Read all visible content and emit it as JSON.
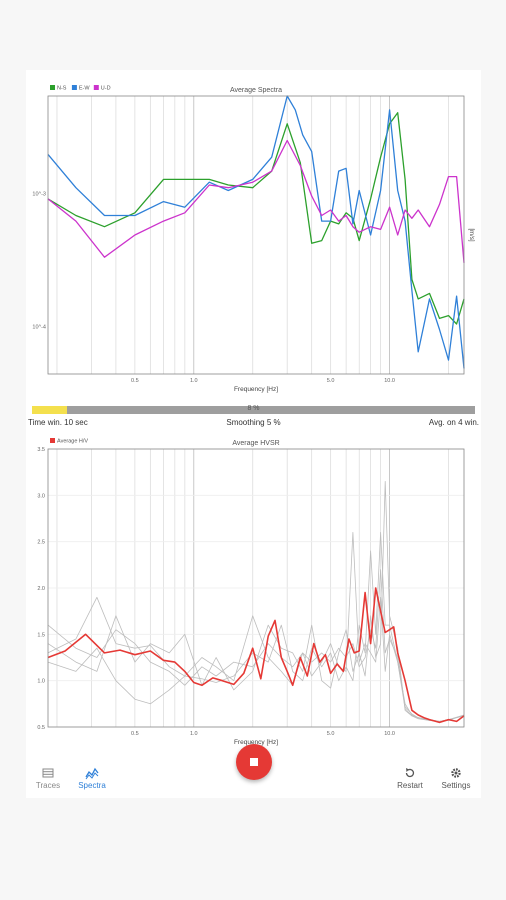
{
  "chart_data": [
    {
      "type": "line",
      "title": "Average Spectra",
      "xlabel": "Frequency [Hz]",
      "ylabel": "[m/s]",
      "xscale": "log",
      "yscale": "log",
      "xlim": [
        0.18,
        24
      ],
      "x_ticks": [
        {
          "value": 0.5,
          "label": "0.5"
        },
        {
          "value": 1,
          "label": "1.0"
        },
        {
          "value": 5,
          "label": "5.0"
        },
        {
          "value": 10,
          "label": "10.0"
        }
      ],
      "y_ticks": [
        {
          "frac": 0.35,
          "label": "10^-3"
        },
        {
          "frac": 0.83,
          "label": "10^-4"
        }
      ],
      "legend": "top-left",
      "grid": true,
      "series": [
        {
          "name": "N-S",
          "color": "#2ca02c",
          "points": [
            [
              0.18,
              0.37
            ],
            [
              0.25,
              0.43
            ],
            [
              0.35,
              0.47
            ],
            [
              0.5,
              0.42
            ],
            [
              0.7,
              0.3
            ],
            [
              0.9,
              0.3
            ],
            [
              1.2,
              0.3
            ],
            [
              1.5,
              0.32
            ],
            [
              2,
              0.33
            ],
            [
              2.5,
              0.27
            ],
            [
              3,
              0.1
            ],
            [
              3.5,
              0.24
            ],
            [
              4,
              0.53
            ],
            [
              4.5,
              0.52
            ],
            [
              5,
              0.45
            ],
            [
              5.5,
              0.46
            ],
            [
              6,
              0.42
            ],
            [
              6.5,
              0.44
            ],
            [
              7,
              0.52
            ],
            [
              8,
              0.37
            ],
            [
              9,
              0.22
            ],
            [
              10,
              0.1
            ],
            [
              11,
              0.06
            ],
            [
              12,
              0.3
            ],
            [
              13,
              0.66
            ],
            [
              14,
              0.73
            ],
            [
              16,
              0.71
            ],
            [
              18,
              0.8
            ],
            [
              20,
              0.79
            ],
            [
              22,
              0.82
            ],
            [
              24,
              0.73
            ]
          ]
        },
        {
          "name": "E-W",
          "color": "#2f80d8",
          "points": [
            [
              0.18,
              0.21
            ],
            [
              0.25,
              0.33
            ],
            [
              0.35,
              0.43
            ],
            [
              0.5,
              0.43
            ],
            [
              0.7,
              0.38
            ],
            [
              0.9,
              0.4
            ],
            [
              1.2,
              0.31
            ],
            [
              1.5,
              0.34
            ],
            [
              2,
              0.3
            ],
            [
              2.5,
              0.22
            ],
            [
              3,
              0.0
            ],
            [
              3.3,
              0.05
            ],
            [
              3.6,
              0.14
            ],
            [
              4,
              0.2
            ],
            [
              4.5,
              0.45
            ],
            [
              5,
              0.45
            ],
            [
              5.5,
              0.27
            ],
            [
              6,
              0.26
            ],
            [
              6.5,
              0.46
            ],
            [
              7,
              0.34
            ],
            [
              8,
              0.5
            ],
            [
              9,
              0.34
            ],
            [
              10,
              0.05
            ],
            [
              11,
              0.34
            ],
            [
              12,
              0.45
            ],
            [
              13,
              0.7
            ],
            [
              14,
              0.92
            ],
            [
              16,
              0.73
            ],
            [
              18,
              0.84
            ],
            [
              20,
              0.95
            ],
            [
              22,
              0.72
            ],
            [
              24,
              0.98
            ]
          ]
        },
        {
          "name": "U-D",
          "color": "#cc33cc",
          "points": [
            [
              0.18,
              0.37
            ],
            [
              0.25,
              0.45
            ],
            [
              0.35,
              0.58
            ],
            [
              0.5,
              0.5
            ],
            [
              0.7,
              0.45
            ],
            [
              0.9,
              0.42
            ],
            [
              1.2,
              0.32
            ],
            [
              1.5,
              0.33
            ],
            [
              2,
              0.31
            ],
            [
              2.5,
              0.27
            ],
            [
              3,
              0.16
            ],
            [
              3.5,
              0.25
            ],
            [
              4,
              0.36
            ],
            [
              4.5,
              0.43
            ],
            [
              5,
              0.41
            ],
            [
              5.5,
              0.45
            ],
            [
              6,
              0.43
            ],
            [
              6.5,
              0.47
            ],
            [
              7,
              0.49
            ],
            [
              8,
              0.47
            ],
            [
              9,
              0.48
            ],
            [
              10,
              0.4
            ],
            [
              11,
              0.5
            ],
            [
              12,
              0.41
            ],
            [
              13,
              0.44
            ],
            [
              14,
              0.41
            ],
            [
              16,
              0.47
            ],
            [
              18,
              0.39
            ],
            [
              20,
              0.29
            ],
            [
              22,
              0.29
            ],
            [
              24,
              0.6
            ]
          ]
        }
      ]
    },
    {
      "type": "line",
      "title": "Average HVSR",
      "xlabel": "Frequency [Hz]",
      "xscale": "log",
      "xlim": [
        0.18,
        24
      ],
      "ylim": [
        0.5,
        3.5
      ],
      "x_ticks": [
        {
          "value": 0.5,
          "label": "0.5"
        },
        {
          "value": 1,
          "label": "1.0"
        },
        {
          "value": 5,
          "label": "5.0"
        },
        {
          "value": 10,
          "label": "10.0"
        }
      ],
      "y_ticks": [
        0.5,
        1.0,
        1.5,
        2.0,
        2.5,
        3.0,
        3.5
      ],
      "legend": "top-left",
      "grid": true,
      "series": [
        {
          "name": "Average H/V",
          "color": "#e53935",
          "x": [
            0.18,
            0.22,
            0.28,
            0.35,
            0.42,
            0.5,
            0.6,
            0.7,
            0.8,
            0.9,
            1.0,
            1.1,
            1.25,
            1.4,
            1.6,
            1.8,
            2.0,
            2.2,
            2.4,
            2.6,
            2.8,
            3.0,
            3.2,
            3.5,
            3.8,
            4.1,
            4.4,
            4.7,
            5.0,
            5.4,
            5.8,
            6.2,
            6.6,
            7.0,
            7.5,
            8.0,
            8.5,
            9.0,
            9.5,
            10.0,
            10.5,
            11.0,
            12.0,
            13.0,
            14.0,
            15.0,
            16.0,
            18.0,
            20.0,
            22.0,
            24.0
          ],
          "y": [
            1.25,
            1.32,
            1.5,
            1.3,
            1.33,
            1.28,
            1.32,
            1.22,
            1.2,
            1.1,
            0.98,
            0.95,
            1.03,
            1.0,
            0.96,
            1.08,
            1.35,
            1.02,
            1.48,
            1.65,
            1.25,
            1.1,
            0.95,
            1.25,
            1.05,
            1.4,
            1.2,
            1.28,
            1.08,
            1.18,
            1.1,
            1.45,
            1.3,
            1.32,
            1.95,
            1.4,
            2.0,
            1.75,
            1.52,
            1.55,
            1.58,
            1.3,
            1.0,
            0.68,
            0.63,
            0.6,
            0.58,
            0.55,
            0.58,
            0.56,
            0.62
          ]
        },
        {
          "name": "",
          "color": "#bdbdbd",
          "x": [
            0.18,
            0.25,
            0.32,
            0.4,
            0.5,
            0.6,
            0.75,
            0.9,
            1.1,
            1.3,
            1.6,
            2.0,
            2.4,
            2.8,
            3.2,
            3.6,
            4.0,
            4.5,
            5.0,
            5.5,
            6.0,
            6.5,
            7.0,
            7.5,
            8.0,
            8.5,
            9.0,
            9.5,
            10.0,
            11.0,
            12.0,
            13.0,
            14.0,
            16.0,
            18.0,
            20.0,
            24.0
          ],
          "y": [
            1.3,
            1.45,
            1.9,
            1.4,
            1.35,
            1.38,
            1.15,
            1.05,
            1.02,
            0.98,
            1.05,
            1.3,
            1.2,
            1.6,
            1.1,
            1.0,
            1.35,
            1.15,
            1.3,
            1.0,
            1.15,
            1.0,
            1.6,
            1.3,
            2.4,
            1.5,
            2.6,
            1.6,
            1.6,
            1.2,
            0.7,
            0.62,
            0.6,
            0.58,
            0.56,
            0.58,
            0.62
          ]
        },
        {
          "name": "",
          "color": "#bdbdbd",
          "x": [
            0.18,
            0.25,
            0.32,
            0.4,
            0.5,
            0.6,
            0.75,
            0.9,
            1.1,
            1.3,
            1.6,
            2.0,
            2.4,
            2.8,
            3.2,
            3.6,
            4.0,
            4.5,
            5.0,
            5.5,
            6.0,
            6.5,
            7.0,
            7.5,
            8.0,
            8.5,
            9.0,
            9.5,
            10.0,
            11.0,
            12.0,
            13.0,
            14.0,
            16.0,
            18.0,
            20.0,
            24.0
          ],
          "y": [
            1.2,
            1.1,
            1.35,
            1.0,
            0.8,
            0.75,
            0.9,
            1.05,
            1.25,
            1.15,
            1.0,
            1.7,
            1.25,
            1.1,
            0.95,
            1.3,
            1.05,
            1.2,
            1.4,
            1.15,
            1.1,
            2.6,
            1.2,
            1.4,
            1.3,
            1.2,
            1.9,
            1.1,
            1.5,
            1.2,
            0.75,
            0.63,
            0.6,
            0.57,
            0.56,
            0.58,
            0.63
          ]
        },
        {
          "name": "",
          "color": "#bdbdbd",
          "x": [
            0.18,
            0.25,
            0.32,
            0.4,
            0.5,
            0.6,
            0.75,
            0.9,
            1.1,
            1.3,
            1.6,
            2.0,
            2.4,
            2.8,
            3.2,
            3.6,
            4.0,
            4.5,
            5.0,
            5.5,
            6.0,
            6.5,
            7.0,
            7.5,
            8.0,
            8.5,
            9.0,
            9.5,
            10.0,
            11.0,
            12.0,
            13.0,
            14.0,
            16.0,
            18.0,
            20.0,
            24.0
          ],
          "y": [
            1.4,
            1.2,
            1.1,
            1.7,
            1.2,
            1.4,
            1.3,
            1.5,
            0.95,
            1.25,
            0.9,
            1.1,
            1.6,
            1.35,
            1.3,
            1.1,
            1.6,
            1.0,
            0.92,
            1.3,
            1.55,
            1.1,
            1.3,
            1.05,
            1.7,
            1.25,
            1.4,
            3.15,
            1.7,
            1.35,
            0.68,
            0.62,
            0.59,
            0.57,
            0.56,
            0.58,
            0.62
          ]
        },
        {
          "name": "",
          "color": "#bdbdbd",
          "x": [
            0.18,
            0.25,
            0.32,
            0.4,
            0.5,
            0.6,
            0.75,
            0.9,
            1.1,
            1.3,
            1.6,
            2.0,
            2.4,
            2.8,
            3.2,
            3.6,
            4.0,
            4.5,
            5.0,
            5.5,
            6.0,
            6.5,
            7.0,
            7.5,
            8.0,
            8.5,
            9.0,
            9.5,
            10.0,
            11.0,
            12.0,
            13.0,
            14.0,
            16.0,
            18.0,
            20.0,
            24.0
          ],
          "y": [
            1.6,
            1.35,
            1.25,
            1.55,
            1.4,
            1.2,
            1.1,
            0.95,
            1.15,
            1.05,
            1.2,
            1.15,
            1.4,
            1.25,
            1.15,
            1.3,
            1.2,
            1.3,
            1.2,
            1.35,
            1.25,
            1.4,
            1.15,
            1.25,
            1.55,
            1.35,
            2.2,
            1.3,
            1.45,
            1.25,
            0.72,
            0.64,
            0.6,
            0.58,
            0.56,
            0.57,
            0.63
          ]
        }
      ]
    }
  ],
  "status": {
    "progress": 0.08,
    "progress_label": "8 %",
    "left": "Time win. 10 sec",
    "middle": "Smoothing 5 %",
    "right": "Avg. on 4 win."
  },
  "nav": {
    "traces": "Traces",
    "spectra": "Spectra",
    "restart": "Restart",
    "settings": "Settings"
  }
}
